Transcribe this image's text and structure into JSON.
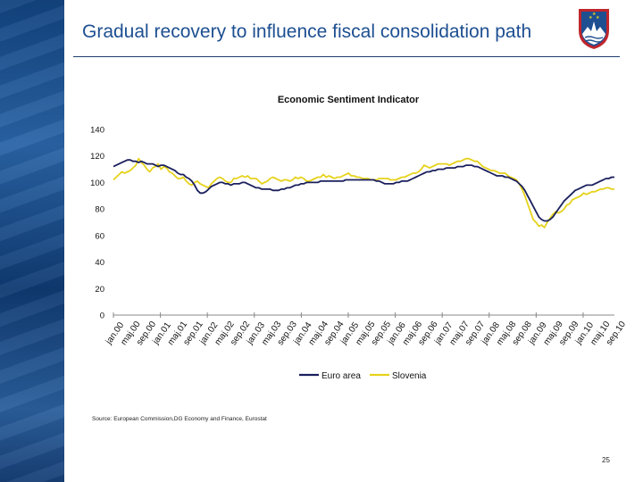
{
  "slide": {
    "title": "Gradual recovery to influence fiscal consolidation path",
    "source": "Source: European Commission,DG Economy and Finance, Eurostat",
    "page_number": "25"
  },
  "colors": {
    "band": "#1d4f91",
    "title": "#1d4f91",
    "euro_area": "#1a1f5c",
    "slovenia": "#e6d21b",
    "coat_red": "#c0262d"
  },
  "chart_data": {
    "type": "line",
    "title": "Economic Sentiment Indicator",
    "xlabel": "",
    "ylabel": "",
    "ylim": [
      0,
      140
    ],
    "yticks": [
      0,
      20,
      40,
      60,
      80,
      100,
      120,
      140
    ],
    "x_tick_labels": [
      "jan.00",
      "maj.00",
      "sep.00",
      "jan.01",
      "maj.01",
      "sep.01",
      "jan.02",
      "maj.02",
      "sep.02",
      "jan.03",
      "maj.03",
      "sep.03",
      "jan.04",
      "maj.04",
      "sep.04",
      "jan.05",
      "maj.05",
      "sep.05",
      "jan.06",
      "maj.06",
      "sep.06",
      "jan.07",
      "maj.07",
      "sep.07",
      "jan.08",
      "maj.08",
      "sep.08",
      "jan.09",
      "maj.09",
      "sep.09",
      "jan.10",
      "maj.10",
      "sep.10"
    ],
    "legend_position": "bottom",
    "grid": false,
    "series": [
      {
        "name": "Euro area",
        "color": "#1a1f5c",
        "values": [
          112,
          113,
          114,
          115,
          116,
          117,
          117,
          116,
          116,
          115,
          116,
          115,
          114,
          114,
          114,
          113,
          112,
          113,
          113,
          112,
          111,
          110,
          109,
          107,
          106,
          106,
          104,
          103,
          101,
          98,
          94,
          92,
          92,
          93,
          95,
          97,
          98,
          99,
          100,
          100,
          99,
          99,
          98,
          99,
          99,
          99,
          100,
          100,
          99,
          98,
          97,
          96,
          96,
          95,
          95,
          95,
          95,
          94,
          94,
          94,
          95,
          95,
          96,
          96,
          97,
          98,
          98,
          99,
          99,
          100,
          100,
          100,
          100,
          100,
          101,
          101,
          101,
          101,
          101,
          101,
          101,
          101,
          101,
          102,
          102,
          102,
          102,
          102,
          102,
          102,
          102,
          102,
          102,
          102,
          101,
          101,
          100,
          99,
          99,
          99,
          99,
          100,
          100,
          101,
          101,
          101,
          102,
          103,
          104,
          105,
          106,
          107,
          108,
          108,
          109,
          109,
          110,
          110,
          110,
          111,
          111,
          111,
          111,
          112,
          112,
          112,
          113,
          113,
          113,
          112,
          112,
          111,
          110,
          109,
          108,
          107,
          106,
          105,
          105,
          105,
          104,
          104,
          103,
          102,
          101,
          99,
          97,
          94,
          90,
          86,
          82,
          78,
          74,
          72,
          71,
          71,
          72,
          74,
          77,
          80,
          83,
          86,
          88,
          90,
          92,
          94,
          95,
          96,
          97,
          98,
          98,
          98,
          99,
          100,
          101,
          102,
          103,
          103,
          104,
          104
        ]
      },
      {
        "name": "Slovenia",
        "color": "#e6d21b",
        "values": [
          102,
          104,
          106,
          108,
          107,
          108,
          109,
          111,
          113,
          118,
          115,
          113,
          110,
          108,
          111,
          112,
          114,
          110,
          112,
          111,
          108,
          107,
          105,
          103,
          103,
          104,
          101,
          99,
          98,
          100,
          101,
          99,
          98,
          97,
          96,
          99,
          101,
          103,
          104,
          103,
          101,
          100,
          100,
          103,
          103,
          104,
          105,
          104,
          105,
          103,
          103,
          103,
          101,
          99,
          100,
          101,
          103,
          104,
          103,
          102,
          101,
          102,
          102,
          101,
          102,
          104,
          103,
          104,
          103,
          101,
          101,
          102,
          103,
          104,
          104,
          106,
          104,
          105,
          104,
          103,
          104,
          104,
          105,
          106,
          107,
          105,
          105,
          104,
          104,
          103,
          103,
          103,
          102,
          102,
          102,
          103,
          103,
          103,
          103,
          102,
          102,
          102,
          103,
          104,
          104,
          105,
          106,
          107,
          107,
          108,
          110,
          113,
          112,
          111,
          112,
          113,
          114,
          114,
          114,
          114,
          113,
          114,
          115,
          116,
          116,
          117,
          118,
          118,
          117,
          116,
          116,
          114,
          112,
          111,
          110,
          109,
          109,
          108,
          107,
          107,
          107,
          105,
          104,
          103,
          102,
          99,
          95,
          90,
          84,
          78,
          72,
          70,
          67,
          68,
          66,
          70,
          73,
          76,
          78,
          77,
          78,
          80,
          83,
          84,
          87,
          88,
          89,
          90,
          92,
          91,
          92,
          93,
          93,
          94,
          95,
          95,
          96,
          96,
          95,
          95
        ]
      }
    ]
  }
}
